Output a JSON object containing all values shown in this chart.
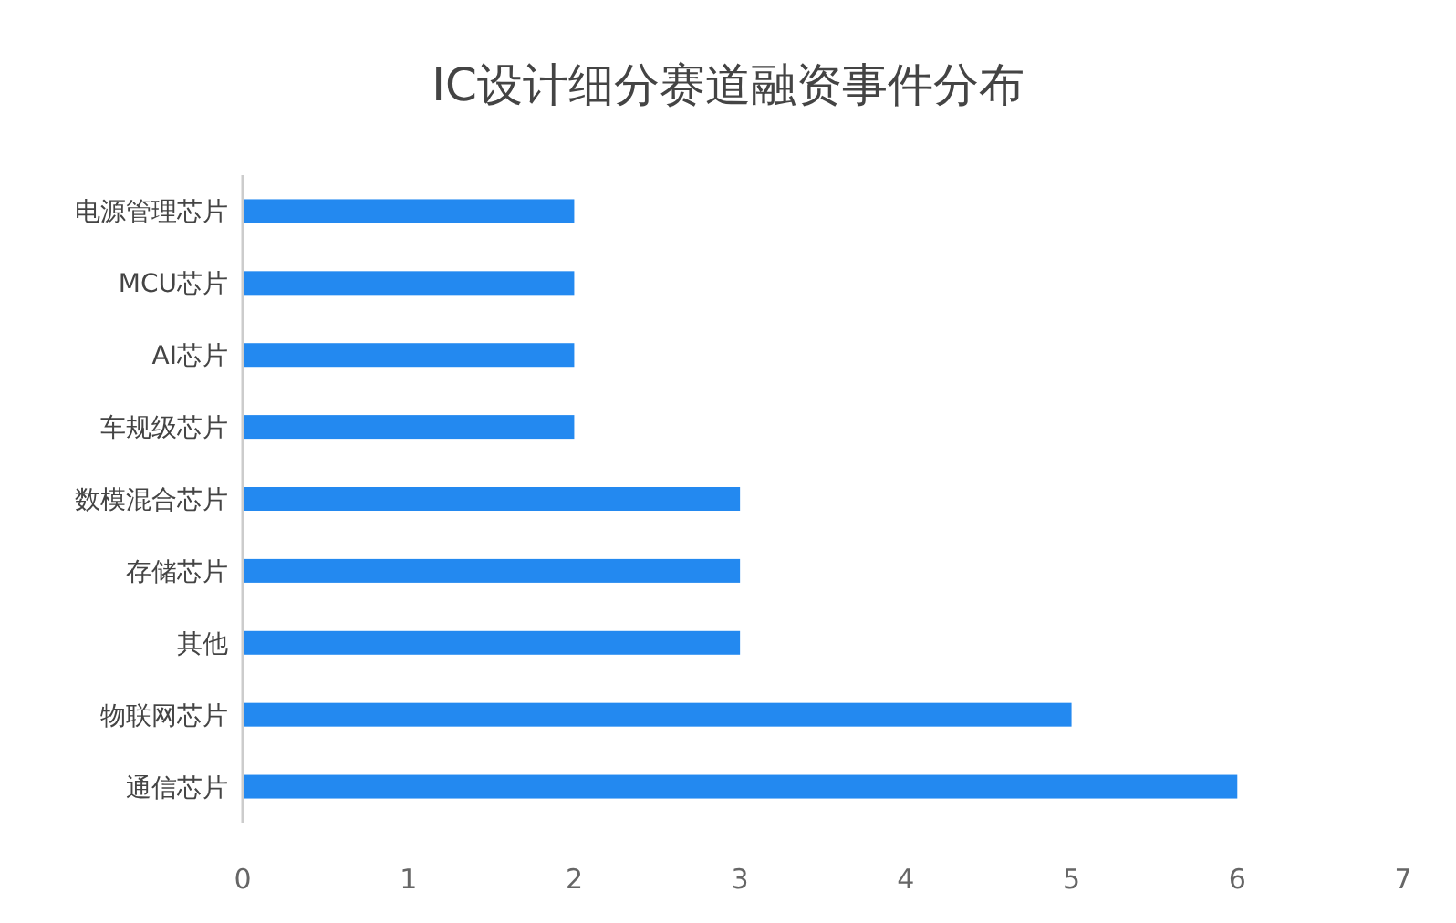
{
  "chart_data": {
    "type": "bar",
    "orientation": "horizontal",
    "title": "IC设计细分赛道融资事件分布",
    "categories": [
      "电源管理芯片",
      "MCU芯片",
      "AI芯片",
      "车规级芯片",
      "数模混合芯片",
      "存储芯片",
      "其他",
      "物联网芯片",
      "通信芯片"
    ],
    "values": [
      2,
      2,
      2,
      2,
      3,
      3,
      3,
      5,
      6
    ],
    "color": "#2389f0",
    "xlim": [
      0,
      7
    ],
    "xticks": [
      0,
      1,
      2,
      3,
      4,
      5,
      6,
      7
    ]
  }
}
